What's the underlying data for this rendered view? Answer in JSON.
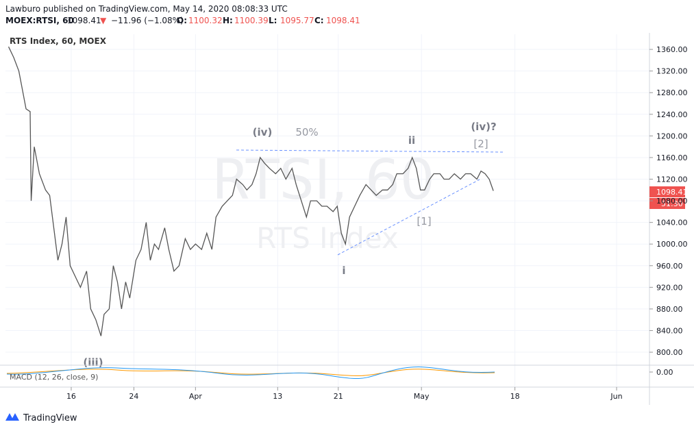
{
  "header": {
    "publisher": "Lawburo published on TradingView.com, May 14, 2020 08:08:33 UTC",
    "ticker": "MOEX:RTSI, 60",
    "last": "1098.41",
    "arrow": "▼",
    "change": "−11.96 (−1.08%)",
    "ohlc": [
      {
        "label": "O:",
        "value": "1100.32"
      },
      {
        "label": "H:",
        "value": "1100.39"
      },
      {
        "label": "L:",
        "value": "1095.77"
      },
      {
        "label": "C:",
        "value": "1098.41"
      }
    ]
  },
  "chart_data": {
    "type": "line",
    "title": "RTS Index, 60, MOEX",
    "watermark": "RTSI, 60",
    "watermark_sub": "RTS Index",
    "series": [
      {
        "name": "RTSI",
        "color": "#555555",
        "x": [
          -6.1,
          -5.6,
          -5.1,
          -4.8,
          -4.4,
          -4.0,
          -3.9,
          -3.6,
          -3.1,
          -2.5,
          -2.1,
          -1.7,
          -1.3,
          -0.9,
          -0.5,
          -0.1,
          0.4,
          0.9,
          1.5,
          1.9,
          2.4,
          2.9,
          3.2,
          3.7,
          4.1,
          4.5,
          4.9,
          5.3,
          5.7,
          6.3,
          6.8,
          7.3,
          7.7,
          8.1,
          8.5,
          9.1,
          9.5,
          10,
          10.5,
          11.1,
          11.6,
          12.1,
          12.7,
          13.2,
          13.7,
          14.1,
          14.7,
          15.2,
          15.7,
          16.1,
          16.7,
          17.1,
          17.6,
          18,
          18.4,
          18.8,
          19.3,
          19.9,
          20.4,
          20.9,
          21.5,
          21.9,
          22.4,
          22.9,
          23.3,
          23.9,
          24.4,
          24.9,
          25.5,
          25.9,
          26.3,
          26.7,
          27.1,
          27.6,
          28.1,
          28.7,
          29.2,
          29.7,
          30.3,
          30.8,
          31.3,
          31.7,
          32.3,
          32.8,
          33.2,
          33.6,
          34,
          34.4,
          34.9,
          35.3,
          35.9,
          36.3,
          36.8,
          37.3,
          37.9,
          38.4,
          38.9,
          39.5,
          39.9,
          40.3,
          40.7,
          41.1
        ],
        "values": [
          1365,
          1345,
          1320,
          1290,
          1250,
          1245,
          1080,
          1180,
          1130,
          1100,
          1090,
          1030,
          970,
          1000,
          1050,
          960,
          940,
          920,
          950,
          880,
          860,
          830,
          870,
          880,
          960,
          930,
          880,
          930,
          900,
          970,
          990,
          1040,
          970,
          1000,
          990,
          1030,
          990,
          950,
          960,
          1010,
          990,
          1000,
          990,
          1020,
          990,
          1050,
          1070,
          1080,
          1090,
          1120,
          1110,
          1100,
          1110,
          1130,
          1160,
          1150,
          1140,
          1130,
          1140,
          1120,
          1140,
          1110,
          1080,
          1050,
          1080,
          1080,
          1070,
          1070,
          1060,
          1070,
          1020,
          1000,
          1050,
          1070,
          1090,
          1110,
          1100,
          1090,
          1100,
          1100,
          1110,
          1130,
          1130,
          1140,
          1160,
          1140,
          1100,
          1100,
          1120,
          1130,
          1130,
          1120,
          1120,
          1130,
          1120,
          1130,
          1130,
          1120,
          1135,
          1130,
          1120,
          1098.41
        ]
      }
    ],
    "xlim": [
      -6.4,
      56.3
    ],
    "xticks": [
      {
        "value": 0,
        "label": "16"
      },
      {
        "value": 6.1,
        "label": "24"
      },
      {
        "value": 12.1,
        "label": "Apr"
      },
      {
        "value": 20.1,
        "label": "13"
      },
      {
        "value": 26,
        "label": "21"
      },
      {
        "value": 34.1,
        "label": "May"
      },
      {
        "value": 43.2,
        "label": "18"
      },
      {
        "value": 53.1,
        "label": "Jun"
      }
    ],
    "ylim": [
      776,
      1388
    ],
    "yticks": [
      {
        "value": 800,
        "label": "800.00"
      },
      {
        "value": 840,
        "label": "840.00"
      },
      {
        "value": 880,
        "label": "880.00"
      },
      {
        "value": 920,
        "label": "920.00"
      },
      {
        "value": 960,
        "label": "960.00"
      },
      {
        "value": 1000,
        "label": "1000.00"
      },
      {
        "value": 1040,
        "label": "1040.00"
      },
      {
        "value": 1080,
        "label": "1080.00"
      },
      {
        "value": 1120,
        "label": "1120.00"
      },
      {
        "value": 1160,
        "label": "1160.00"
      },
      {
        "value": 1200,
        "label": "1200.00"
      },
      {
        "value": 1240,
        "label": "1240.00"
      },
      {
        "value": 1280,
        "label": "1280.00"
      },
      {
        "value": 1320,
        "label": "1320.00"
      },
      {
        "value": 1360,
        "label": "1360.00"
      }
    ],
    "grid": true,
    "last_label": "1098.41",
    "countdown": "51:30",
    "annotations": {
      "iv": "(iv)",
      "fifty": "50%",
      "ii": "ii",
      "iv_q": "(iv)?",
      "two": "[2]",
      "one": "[1]",
      "i": "i",
      "iii": "(iii)"
    },
    "macd_label": "MACD (12, 26, close, 9)",
    "macd_ytick": {
      "value": 0,
      "label": "0.00"
    }
  },
  "footer": {
    "brand": "TradingView"
  }
}
